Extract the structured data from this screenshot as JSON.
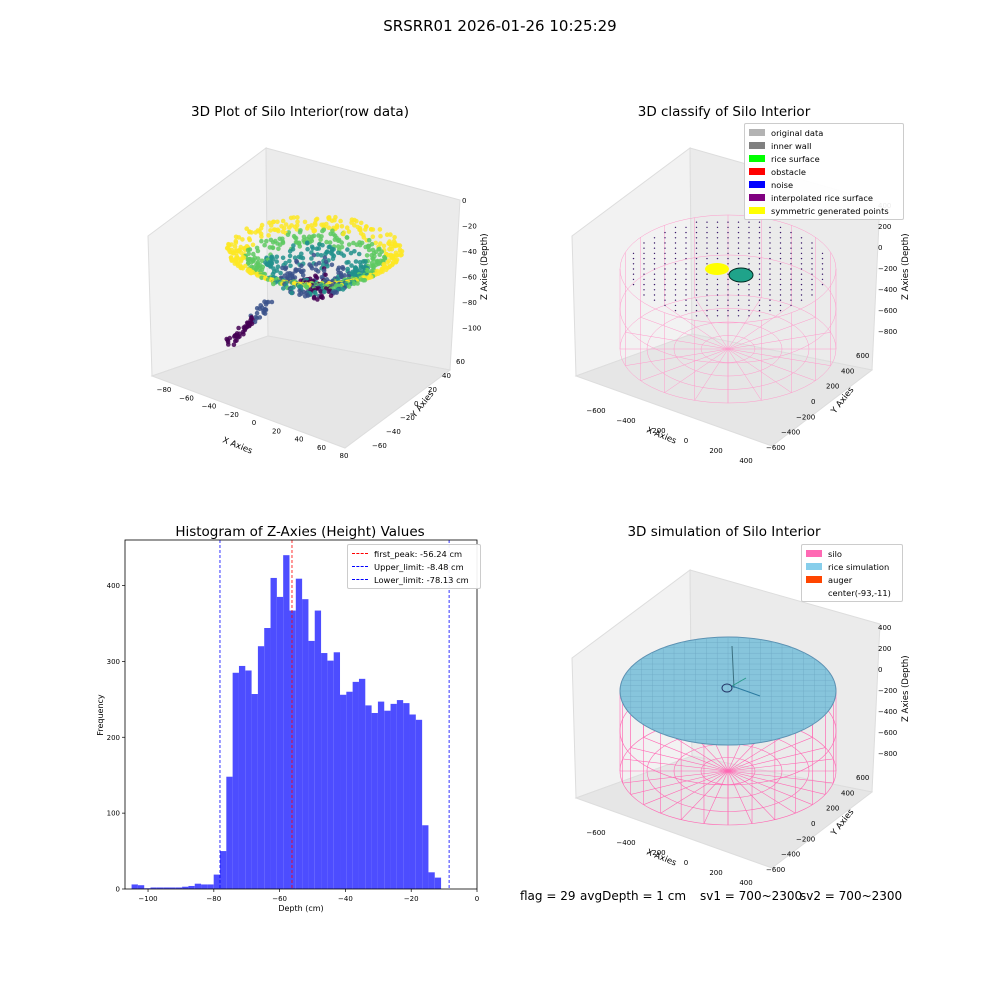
{
  "suptitle": "SRSRR01 2026-01-26 10:25:29",
  "status": {
    "flag": "flag = 29",
    "avg_depth": "avgDepth = 1 cm",
    "sv1": "sv1 = 700~2300",
    "sv2": "sv2 = 700~2300"
  },
  "panels": {
    "raw": {
      "title": "3D Plot of Silo Interior(row data)",
      "xlabel": "X Axies",
      "ylabel": "Y Axies",
      "zlabel": "Z Axies (Depth)",
      "x_ticks": [
        "−80",
        "−60",
        "−40",
        "−20",
        "0",
        "20",
        "40",
        "60",
        "80"
      ],
      "y_ticks": [
        "−60",
        "−40",
        "−20",
        "0",
        "20",
        "40",
        "60"
      ],
      "z_ticks": [
        "0",
        "−20",
        "−40",
        "−60",
        "−80",
        "−100"
      ],
      "colormap": [
        "#440154",
        "#3b528b",
        "#21918c",
        "#5ec962",
        "#fde725"
      ]
    },
    "classify": {
      "title": "3D classify of Silo Interior",
      "xlabel": "X Axies",
      "ylabel": "Y Axies",
      "zlabel": "Z Axies (Depth)",
      "x_ticks": [
        "−600",
        "−400",
        "−200",
        "0",
        "200",
        "400"
      ],
      "y_ticks": [
        "600",
        "400",
        "200",
        "0",
        "−200",
        "−400",
        "−600"
      ],
      "z_ticks": [
        "400",
        "200",
        "0",
        "−200",
        "−400",
        "−600",
        "−800"
      ],
      "legend": [
        {
          "label": "original data",
          "color": "#b3b3b3"
        },
        {
          "label": "inner wall",
          "color": "#808080"
        },
        {
          "label": "rice surface",
          "color": "#00ff00"
        },
        {
          "label": "obstacle",
          "color": "#ff0000"
        },
        {
          "label": "noise",
          "color": "#0000ff"
        },
        {
          "label": "interpolated rice surface",
          "color": "#800080"
        },
        {
          "label": "symmetric generated points",
          "color": "#ffff00"
        }
      ]
    },
    "simulation": {
      "title": "3D simulation of Silo Interior",
      "xlabel": "X Axies",
      "ylabel": "Y Axies",
      "zlabel": "Z Axies (Depth)",
      "x_ticks": [
        "−600",
        "−400",
        "−200",
        "0",
        "200",
        "400"
      ],
      "y_ticks": [
        "600",
        "400",
        "200",
        "0",
        "−200",
        "−400",
        "−600"
      ],
      "z_ticks": [
        "400",
        "200",
        "0",
        "−200",
        "−400",
        "−600",
        "−800"
      ],
      "legend": [
        {
          "label": "silo",
          "color": "#ff69b4"
        },
        {
          "label": "rice simulation",
          "color": "#87ceeb"
        },
        {
          "label": "auger",
          "color": "#ff4500"
        },
        {
          "label": "center(-93,-11)",
          "color": "none"
        }
      ]
    }
  },
  "chart_data": [
    {
      "type": "bar",
      "title": "Histogram of Z-Axies (Height) Values",
      "xlabel": "Depth (cm)",
      "ylabel": "Frequency",
      "xlim": [
        -107,
        0
      ],
      "ylim": [
        0,
        460
      ],
      "x_ticks": [
        -100,
        -80,
        -60,
        -40,
        -20,
        0
      ],
      "x_tick_labels": [
        "−100",
        "−80",
        "−60",
        "−40",
        "−20",
        "0"
      ],
      "y_ticks": [
        0,
        100,
        200,
        300,
        400
      ],
      "bar_color": "#4d4dff",
      "bins": {
        "start": -105,
        "width": 1.92,
        "values": [
          6,
          5,
          1,
          2,
          2,
          2,
          2,
          2,
          3,
          4,
          7,
          6,
          6,
          19,
          50,
          148,
          285,
          294,
          288,
          257,
          320,
          344,
          410,
          385,
          440,
          367,
          409,
          382,
          327,
          367,
          311,
          301,
          312,
          256,
          260,
          273,
          277,
          242,
          232,
          247,
          235,
          244,
          249,
          245,
          230,
          223,
          84,
          22,
          15
        ]
      },
      "lines": [
        {
          "label": "first_peak: -56.24 cm",
          "x": -56.24,
          "color": "#ff0000"
        },
        {
          "label": "Upper_limit: -8.48 cm",
          "x": -8.48,
          "color": "#0000ff"
        },
        {
          "label": "Lower_limit: -78.13 cm",
          "x": -78.13,
          "color": "#0000ff"
        }
      ],
      "legend_position": "top-right"
    }
  ]
}
